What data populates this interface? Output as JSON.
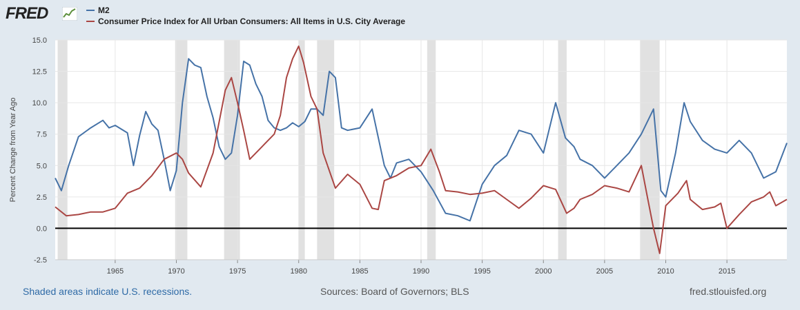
{
  "header": {
    "logo_text": "FRED",
    "logo_icon": "sparkline-chart-icon"
  },
  "chart_data": {
    "type": "line",
    "title": "",
    "xlabel": "",
    "ylabel": "Percent Change from Year Ago",
    "xlim": [
      1960.1,
      2019.9
    ],
    "ylim": [
      -2.5,
      15.0
    ],
    "yticks": [
      -2.5,
      0.0,
      2.5,
      5.0,
      7.5,
      10.0,
      12.5,
      15.0
    ],
    "ytick_labels": [
      "-2.5",
      "0.0",
      "2.5",
      "5.0",
      "7.5",
      "10.0",
      "12.5",
      "15.0"
    ],
    "xticks": [
      1965,
      1970,
      1975,
      1980,
      1985,
      1990,
      1995,
      2000,
      2005,
      2010,
      2015
    ],
    "xtick_labels": [
      "1965",
      "1970",
      "1975",
      "1980",
      "1985",
      "1990",
      "1995",
      "2000",
      "2005",
      "2010",
      "2015"
    ],
    "recessions": [
      [
        1960.3,
        1961.1
      ],
      [
        1969.9,
        1970.9
      ],
      [
        1973.9,
        1975.2
      ],
      [
        1980.0,
        1980.5
      ],
      [
        1981.5,
        1982.9
      ],
      [
        1990.5,
        1991.2
      ],
      [
        2001.2,
        2001.9
      ],
      [
        2007.9,
        2009.5
      ]
    ],
    "zero_line": 0.0,
    "series": [
      {
        "name": "M2",
        "color": "#4572a7",
        "x": [
          1960.1,
          1960.6,
          1961.2,
          1962,
          1963,
          1964,
          1964.5,
          1965,
          1966,
          1966.5,
          1967,
          1967.5,
          1968,
          1968.5,
          1969,
          1969.5,
          1970,
          1970.5,
          1971,
          1971.5,
          1972,
          1972.5,
          1973,
          1973.5,
          1974,
          1974.5,
          1975,
          1975.5,
          1976,
          1976.5,
          1977,
          1977.5,
          1978,
          1978.5,
          1979,
          1979.5,
          1980,
          1980.5,
          1981,
          1981.5,
          1982,
          1982.5,
          1983,
          1983.5,
          1984,
          1985,
          1986,
          1987,
          1987.5,
          1988,
          1989,
          1990,
          1991,
          1992,
          1993,
          1994,
          1995,
          1996,
          1997,
          1998,
          1999,
          2000,
          2001,
          2001.8,
          2002.5,
          2003,
          2004,
          2005,
          2006,
          2007,
          2008,
          2009,
          2009.6,
          2010,
          2010.8,
          2011.5,
          2012,
          2013,
          2014,
          2015,
          2016,
          2017,
          2018,
          2019,
          2019.9
        ],
        "values": [
          4.0,
          3.0,
          5.0,
          7.3,
          8.0,
          8.6,
          8.0,
          8.2,
          7.6,
          5.0,
          7.4,
          9.3,
          8.3,
          7.8,
          5.5,
          3.0,
          4.6,
          10.0,
          13.5,
          13.0,
          12.8,
          10.5,
          8.8,
          6.5,
          5.5,
          6.0,
          9.0,
          13.3,
          13.0,
          11.5,
          10.5,
          8.6,
          8.0,
          7.8,
          8.0,
          8.4,
          8.1,
          8.5,
          9.5,
          9.5,
          9.0,
          12.5,
          12.0,
          8.0,
          7.8,
          8.0,
          9.5,
          5.0,
          4.0,
          5.2,
          5.5,
          4.5,
          3.0,
          1.2,
          1.0,
          0.6,
          3.5,
          5.0,
          5.8,
          7.8,
          7.5,
          6.0,
          10.0,
          7.2,
          6.5,
          5.5,
          5.0,
          4.0,
          5.0,
          6.0,
          7.5,
          9.5,
          3.0,
          2.5,
          6.0,
          10.0,
          8.5,
          7.0,
          6.3,
          6.0,
          7.0,
          6.0,
          4.0,
          4.5,
          6.8
        ]
      },
      {
        "name": "Consumer Price Index for All Urban Consumers: All Items in U.S. City Average",
        "color": "#aa4643",
        "x": [
          1960.1,
          1961,
          1962,
          1963,
          1964,
          1965,
          1966,
          1967,
          1968,
          1969,
          1970,
          1970.5,
          1971,
          1972,
          1973,
          1974,
          1974.5,
          1975,
          1975.5,
          1976,
          1977,
          1978,
          1978.5,
          1979,
          1979.5,
          1980,
          1980.4,
          1981,
          1981.5,
          1982,
          1983,
          1984,
          1985,
          1986,
          1986.5,
          1987,
          1988,
          1989,
          1990,
          1990.8,
          1991.5,
          1992,
          1993,
          1994,
          1995,
          1996,
          1997,
          1998,
          1999,
          2000,
          2001,
          2001.9,
          2002.5,
          2003,
          2004,
          2005,
          2006,
          2007,
          2008,
          2008.5,
          2009,
          2009.5,
          2010,
          2011,
          2011.7,
          2012,
          2013,
          2014,
          2014.5,
          2015,
          2016,
          2017,
          2018,
          2018.5,
          2019,
          2019.9
        ],
        "values": [
          1.7,
          1.0,
          1.1,
          1.3,
          1.3,
          1.6,
          2.8,
          3.2,
          4.2,
          5.5,
          6.0,
          5.5,
          4.4,
          3.3,
          6.0,
          11.0,
          12.0,
          10.0,
          7.8,
          5.5,
          6.5,
          7.5,
          9.0,
          12.0,
          13.5,
          14.5,
          13.2,
          10.5,
          9.5,
          6.0,
          3.2,
          4.3,
          3.5,
          1.6,
          1.5,
          3.8,
          4.2,
          4.8,
          5.0,
          6.3,
          4.5,
          3.0,
          2.9,
          2.7,
          2.8,
          3.0,
          2.3,
          1.6,
          2.4,
          3.4,
          3.1,
          1.2,
          1.6,
          2.3,
          2.7,
          3.4,
          3.2,
          2.9,
          5.0,
          2.5,
          0.0,
          -2.0,
          1.8,
          2.8,
          3.8,
          2.3,
          1.5,
          1.7,
          2.0,
          0.0,
          1.1,
          2.1,
          2.5,
          2.9,
          1.8,
          2.3
        ]
      }
    ]
  },
  "footer": {
    "recession_note": "Shaded areas indicate U.S. recessions.",
    "sources": "Sources: Board of Governors; BLS",
    "url": "fred.stlouisfed.org"
  }
}
